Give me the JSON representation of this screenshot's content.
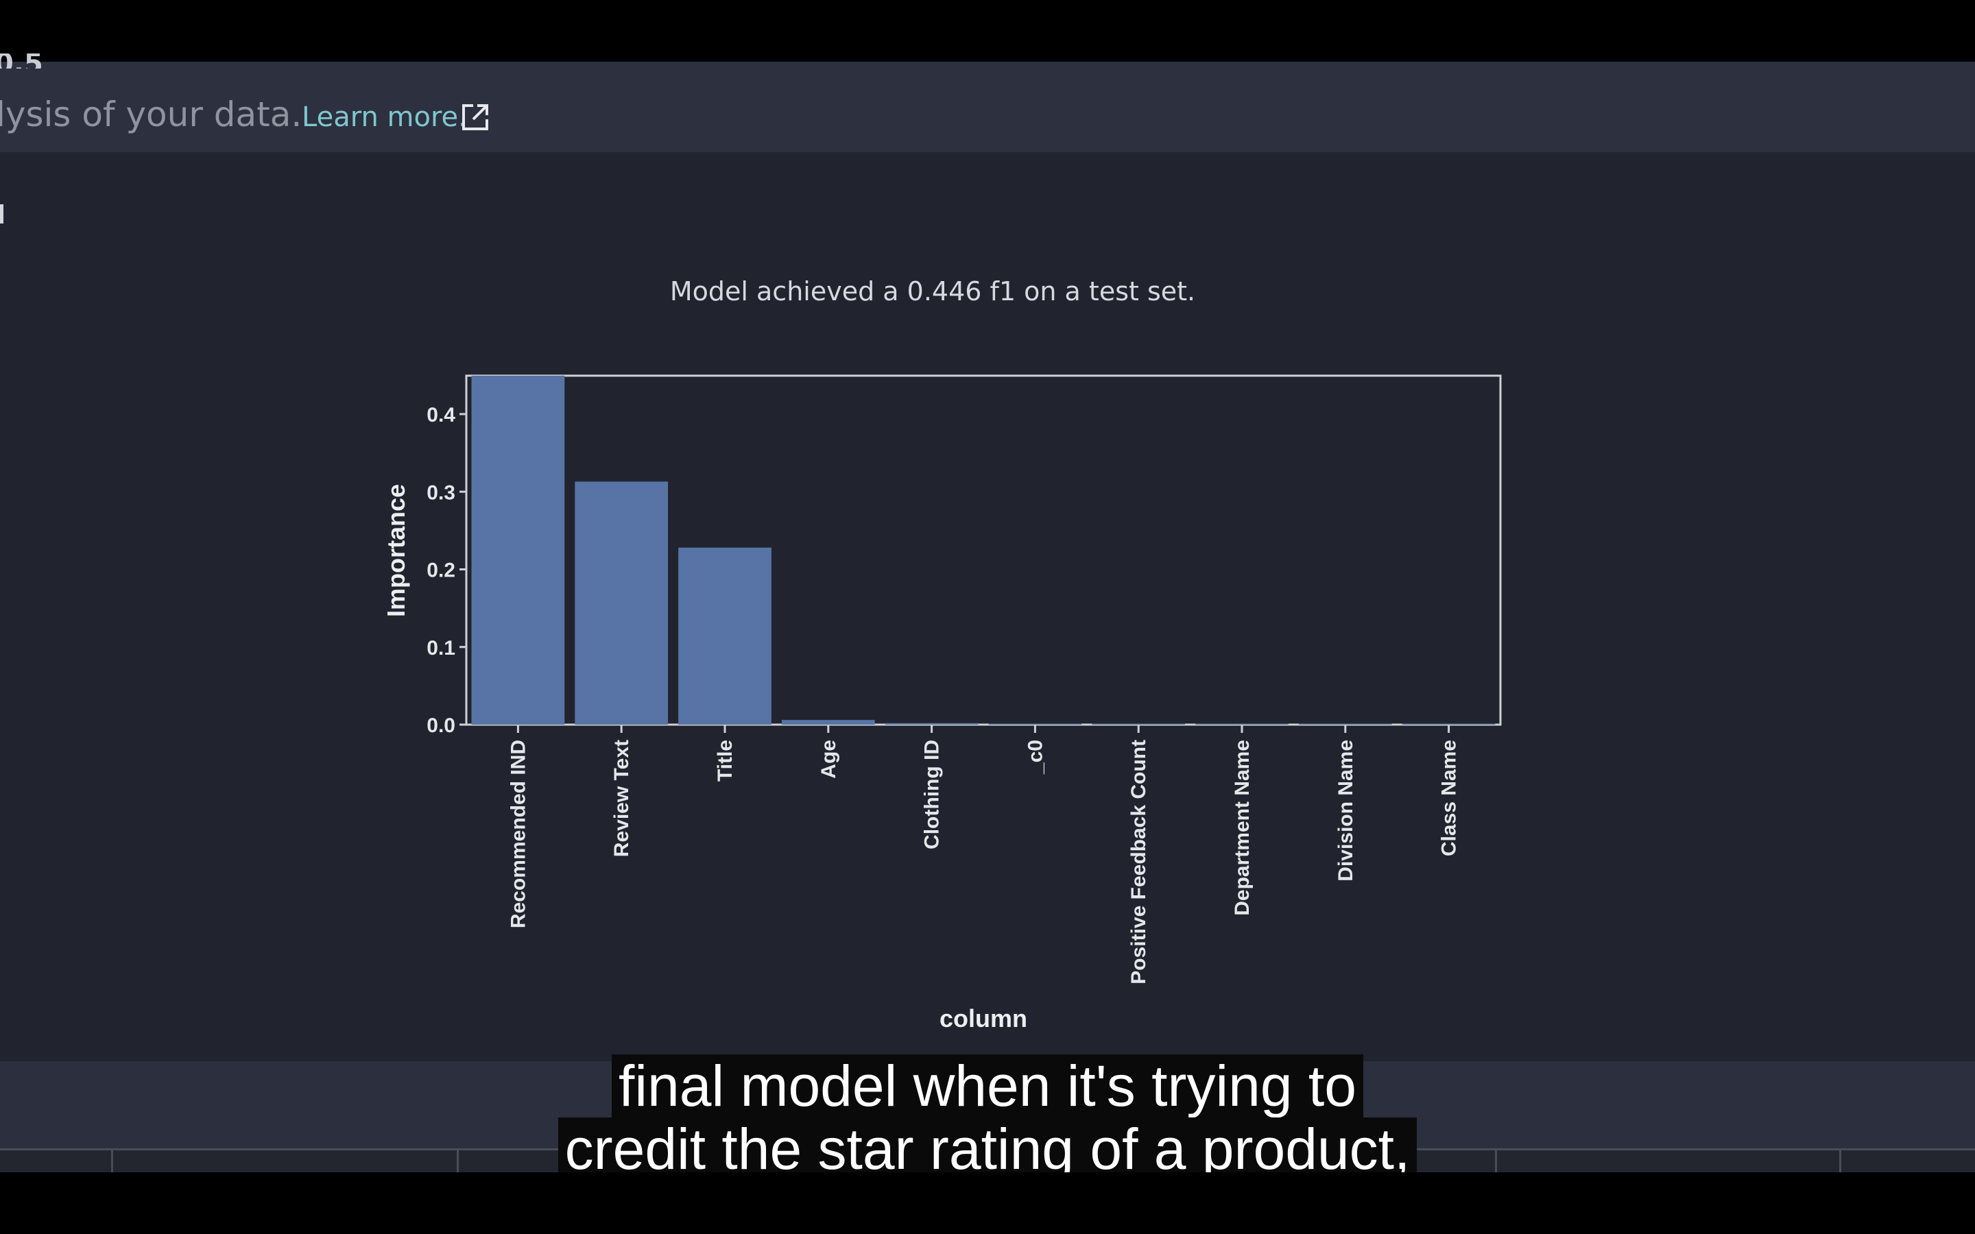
{
  "header": {
    "cut_text": "0.5",
    "description": "lysis of your data.",
    "learn_more": "Learn more."
  },
  "chart_data": {
    "type": "bar",
    "title": "Model achieved a 0.446 f1 on a test set.",
    "xlabel": "column",
    "ylabel": "Importance",
    "ylim": [
      0,
      0.45
    ],
    "yticks": [
      "0.0",
      "0.1",
      "0.2",
      "0.3",
      "0.4"
    ],
    "categories": [
      "Recommended IND",
      "Review Text",
      "Title",
      "Age",
      "Clothing ID",
      "_c0",
      "Positive Feedback Count",
      "Department Name",
      "Division Name",
      "Class Name"
    ],
    "values": [
      0.45,
      0.313,
      0.228,
      0.006,
      0.002,
      0.001,
      0.001,
      0.0005,
      0.0003,
      0.0002
    ],
    "bar_color": "#5874a6",
    "grid": false
  },
  "caption": {
    "line1": "final model when it's trying to",
    "line2": "credit the star rating of a product,"
  }
}
